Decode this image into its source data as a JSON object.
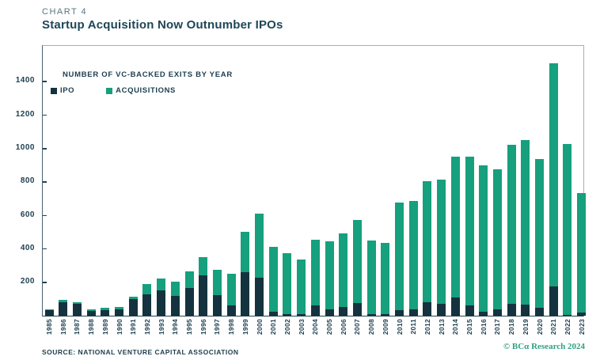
{
  "header": {
    "chart_label": "CHART 4",
    "title": "Startup Acquisition Now Outnumber IPOs"
  },
  "legend": {
    "title": "NUMBER OF VC-BACKED EXITS BY YEAR",
    "items": [
      {
        "label": "IPO",
        "color": "#15323F"
      },
      {
        "label": "ACQUISITIONS",
        "color": "#16A07D"
      }
    ]
  },
  "footer": {
    "source": "SOURCE: NATIONAL VENTURE CAPITAL ASSOCIATION",
    "copyright": "© BCα Research 2024"
  },
  "colors": {
    "ipo": "#15323F",
    "acquisitions": "#16A07D",
    "axis_text": "#1C3E4F",
    "title_text": "#1E4656",
    "copyright_text": "#2EA183"
  },
  "chart_data": {
    "type": "bar",
    "stacked": true,
    "title": "NUMBER OF VC-BACKED EXITS BY YEAR",
    "xlabel": "",
    "ylabel": "",
    "grid": false,
    "legend_position": "inside-top-left",
    "ylim": [
      0,
      1610
    ],
    "yticks": [
      200,
      400,
      600,
      800,
      1000,
      1200,
      1400
    ],
    "categories": [
      "1985",
      "1986",
      "1987",
      "1988",
      "1989",
      "1990",
      "1991",
      "1992",
      "1993",
      "1994",
      "1995",
      "1996",
      "1997",
      "1998",
      "1999",
      "2000",
      "2001",
      "2002",
      "2003",
      "2004",
      "2005",
      "2006",
      "2007",
      "2008",
      "2009",
      "2010",
      "2011",
      "2012",
      "2013",
      "2014",
      "2015",
      "2016",
      "2017",
      "2018",
      "2019",
      "2020",
      "2021",
      "2022",
      "2023"
    ],
    "series": [
      {
        "name": "IPO",
        "color": "#15323F",
        "values": [
          35,
          80,
          70,
          28,
          33,
          38,
          100,
          130,
          150,
          120,
          165,
          240,
          125,
          60,
          260,
          225,
          25,
          10,
          10,
          60,
          40,
          50,
          75,
          8,
          10,
          35,
          40,
          80,
          70,
          110,
          60,
          25,
          40,
          70,
          65,
          45,
          175,
          5,
          18
        ]
      },
      {
        "name": "ACQUISITIONS",
        "color": "#16A07D",
        "values": [
          5,
          15,
          12,
          10,
          12,
          12,
          15,
          60,
          70,
          85,
          100,
          110,
          150,
          190,
          240,
          385,
          385,
          365,
          325,
          395,
          405,
          440,
          495,
          440,
          425,
          640,
          645,
          725,
          745,
          840,
          890,
          875,
          835,
          950,
          985,
          890,
          1335,
          1020,
          715
        ]
      }
    ]
  }
}
